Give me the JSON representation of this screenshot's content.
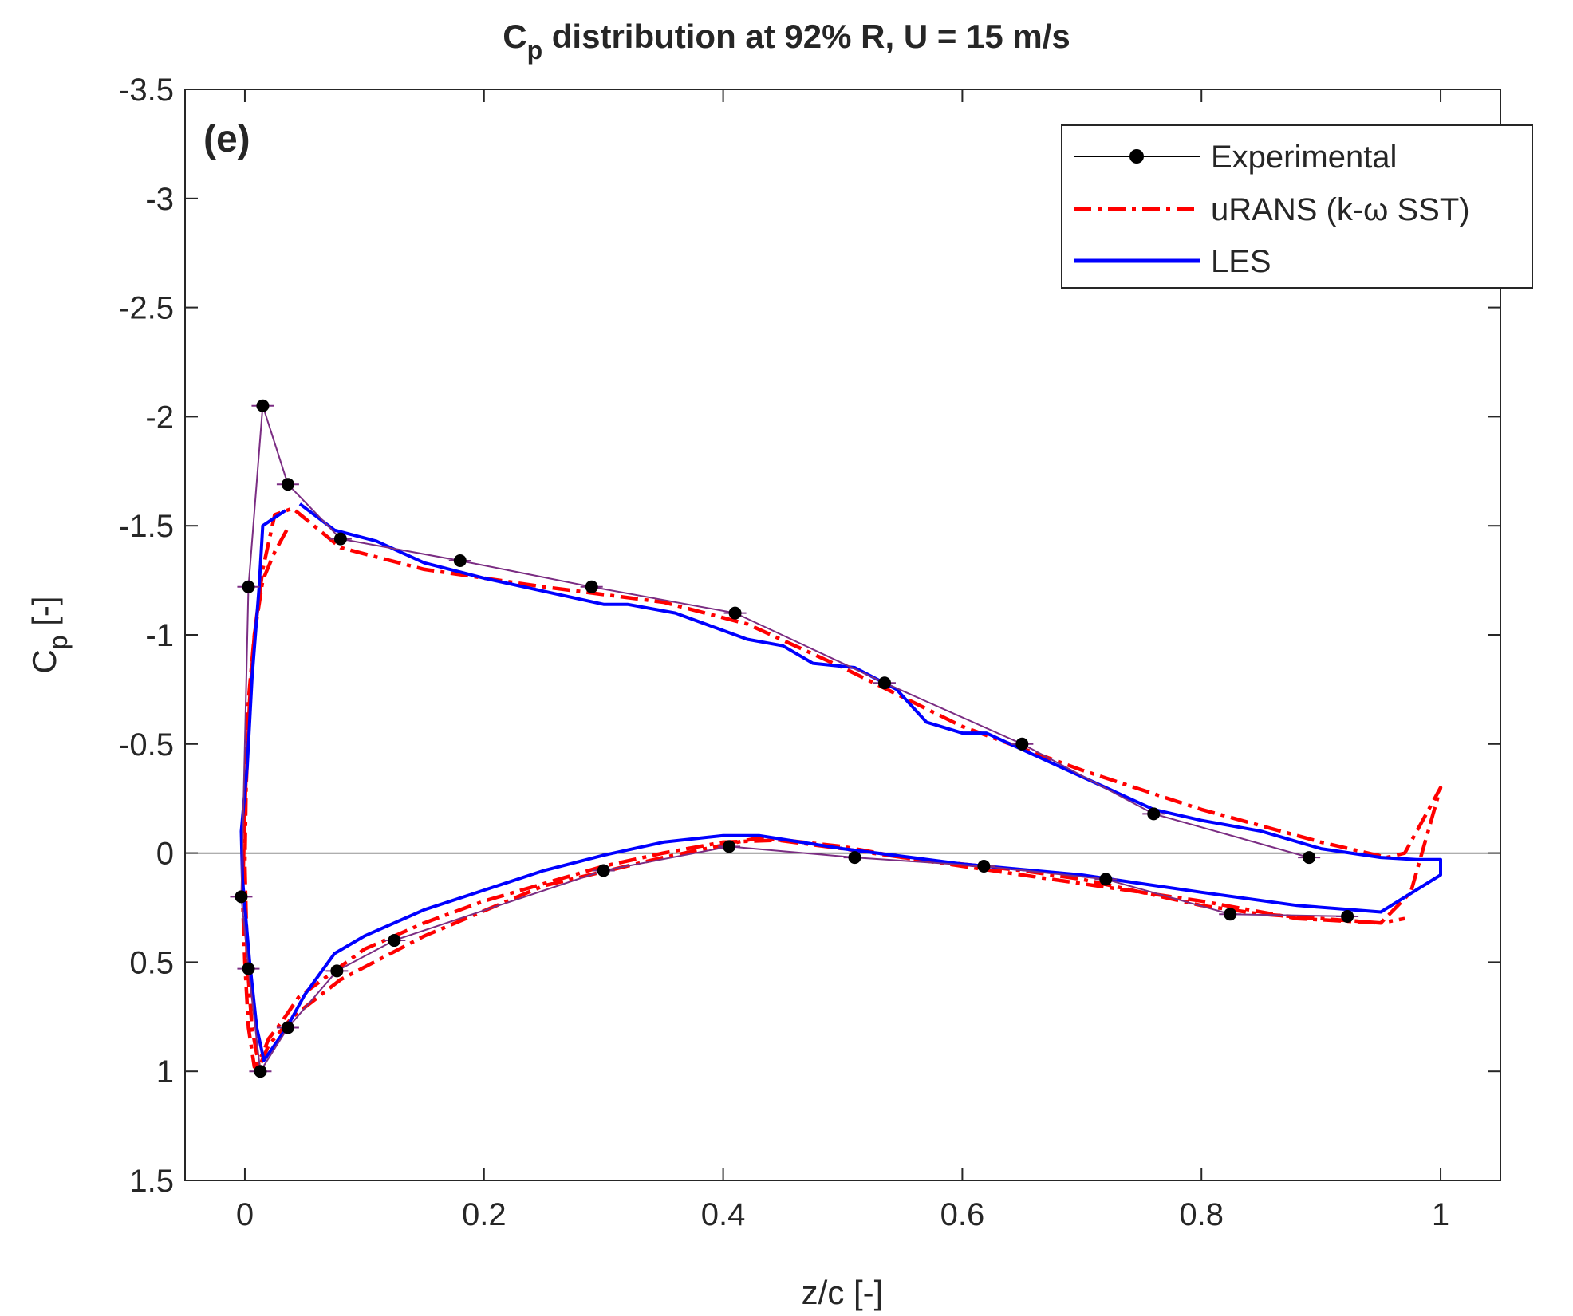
{
  "chart_data": {
    "type": "line",
    "title_main": "C",
    "title_sub": "p",
    "title_rest": " distribution at 92% R, U = 15 m/s",
    "panel_label": "(e)",
    "xlabel": "z/c [-]",
    "ylabel_main": "C",
    "ylabel_sub": "p",
    "ylabel_rest": " [-]",
    "xlim": [
      -0.05,
      1.05
    ],
    "ylim": [
      -3.5,
      1.5
    ],
    "y_reversed": true,
    "x_ticks": [
      0,
      0.2,
      0.4,
      0.6,
      0.8,
      1
    ],
    "x_tick_labels": [
      "0",
      "0.2",
      "0.4",
      "0.6",
      "0.8",
      "1"
    ],
    "y_ticks": [
      -3.5,
      -3,
      -2.5,
      -2,
      -1.5,
      -1,
      -0.5,
      0,
      0.5,
      1,
      1.5
    ],
    "y_tick_labels": [
      "-3.5",
      "-3",
      "-2.5",
      "-2",
      "-1.5",
      "-1",
      "-0.5",
      "0",
      "0.5",
      "1",
      "1.5"
    ],
    "zero_line": true,
    "legend_position": "top-right",
    "series": [
      {
        "name": "Experimental",
        "color": "#000000",
        "line_color": "#7b2d83",
        "style": "solid-markers",
        "x": [
          0.89,
          0.76,
          0.65,
          0.535,
          0.41,
          0.29,
          0.18,
          0.08,
          0.036,
          0.015,
          0.003,
          -0.003,
          0.003,
          0.013,
          0.036,
          0.077,
          0.125,
          0.3,
          0.405,
          0.51,
          0.618,
          0.72,
          0.824,
          0.922
        ],
        "y": [
          0.02,
          -0.18,
          -0.5,
          -0.78,
          -1.1,
          -1.22,
          -1.34,
          -1.44,
          -1.69,
          -2.05,
          -1.22,
          0.2,
          0.53,
          1.0,
          0.8,
          0.54,
          0.4,
          0.08,
          -0.03,
          0.02,
          0.06,
          0.12,
          0.28,
          0.29
        ]
      },
      {
        "name": "uRANS (k-ω SST)",
        "color": "#ff0000",
        "style": "dash-dot",
        "x": [
          0.035,
          0.025,
          0.015,
          0.008,
          0.004,
          0.001,
          0.0,
          0.002,
          0.006,
          0.012,
          0.02,
          0.04,
          0.08,
          0.15,
          0.25,
          0.35,
          0.43,
          0.5,
          0.6,
          0.7,
          0.8,
          0.88,
          0.95,
          0.975,
          1.0,
          0.99,
          0.98,
          0.97,
          0.955,
          0.9,
          0.8,
          0.7,
          0.6,
          0.5,
          0.42,
          0.35,
          0.25,
          0.15,
          0.08,
          0.04,
          0.025,
          0.015,
          0.008,
          0.003,
          0.0,
          -0.002,
          0.0,
          0.003,
          0.008,
          0.015,
          0.02,
          0.03,
          0.045,
          0.06,
          0.1,
          0.15,
          0.2,
          0.3,
          0.35,
          0.4,
          0.45,
          0.5,
          0.55,
          0.6,
          0.65,
          0.7,
          0.75,
          0.8,
          0.85,
          0.9,
          0.95,
          0.97
        ],
        "y": [
          -1.48,
          -1.38,
          -1.25,
          -1.0,
          -0.7,
          -0.3,
          0.05,
          0.5,
          0.8,
          0.98,
          0.88,
          0.75,
          0.58,
          0.38,
          0.15,
          0.02,
          -0.07,
          -0.02,
          0.06,
          0.14,
          0.22,
          0.3,
          0.32,
          0.18,
          -0.3,
          -0.2,
          -0.1,
          0.0,
          0.02,
          -0.05,
          -0.2,
          -0.38,
          -0.58,
          -0.85,
          -1.05,
          -1.15,
          -1.22,
          -1.3,
          -1.4,
          -1.58,
          -1.55,
          -1.3,
          -1.0,
          -0.7,
          -0.2,
          0.2,
          0.5,
          0.8,
          0.98,
          0.92,
          0.85,
          0.78,
          0.66,
          0.6,
          0.44,
          0.32,
          0.22,
          0.06,
          0.0,
          -0.05,
          -0.06,
          -0.03,
          0.02,
          0.05,
          0.08,
          0.12,
          0.18,
          0.24,
          0.28,
          0.3,
          0.32,
          0.3
        ]
      },
      {
        "name": "LES",
        "color": "#0000ff",
        "style": "solid",
        "x": [
          0.034,
          0.015,
          0.012,
          0.006,
          0.002,
          -0.003,
          -0.002,
          0.004,
          0.01,
          0.016,
          0.035,
          0.05,
          0.075,
          0.1,
          0.15,
          0.2,
          0.25,
          0.3,
          0.35,
          0.4,
          0.43,
          0.5,
          0.6,
          0.7,
          0.8,
          0.88,
          0.95,
          1.0,
          1.0,
          0.98,
          0.95,
          0.9,
          0.85,
          0.8,
          0.76,
          0.72,
          0.68,
          0.64,
          0.62,
          0.6,
          0.57,
          0.545,
          0.51,
          0.475,
          0.45,
          0.42,
          0.4,
          0.36,
          0.32,
          0.3,
          0.25,
          0.2,
          0.15,
          0.11,
          0.075,
          0.046
        ],
        "y": [
          -1.57,
          -1.5,
          -1.22,
          -0.8,
          -0.4,
          -0.1,
          0.12,
          0.5,
          0.8,
          0.95,
          0.8,
          0.65,
          0.46,
          0.38,
          0.26,
          0.17,
          0.08,
          0.01,
          -0.05,
          -0.08,
          -0.08,
          -0.02,
          0.05,
          0.1,
          0.18,
          0.24,
          0.27,
          0.1,
          0.03,
          0.03,
          0.02,
          -0.02,
          -0.1,
          -0.15,
          -0.2,
          -0.3,
          -0.4,
          -0.5,
          -0.55,
          -0.55,
          -0.6,
          -0.75,
          -0.85,
          -0.87,
          -0.95,
          -0.98,
          -1.02,
          -1.1,
          -1.14,
          -1.14,
          -1.2,
          -1.26,
          -1.33,
          -1.43,
          -1.48,
          -1.6
        ]
      }
    ]
  }
}
